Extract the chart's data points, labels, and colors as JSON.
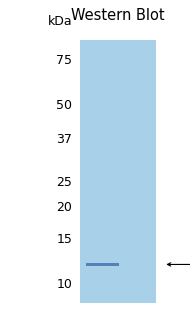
{
  "title": "Western Blot",
  "title_fontsize": 10.5,
  "kda_label": "kDa",
  "kda_fontsize": 9,
  "bg_color": "#a8d0e8",
  "band_color": "#4a7ab5",
  "fig_bg": "#ffffff",
  "marker_labels": [
    "75",
    "50",
    "37",
    "25",
    "20",
    "15",
    "10"
  ],
  "marker_values": [
    75,
    50,
    37,
    25,
    20,
    15,
    10
  ],
  "band_kda": 12,
  "y_min": 8.5,
  "y_max": 90,
  "label_fontsize": 9,
  "band_label_fontsize": 8.5
}
